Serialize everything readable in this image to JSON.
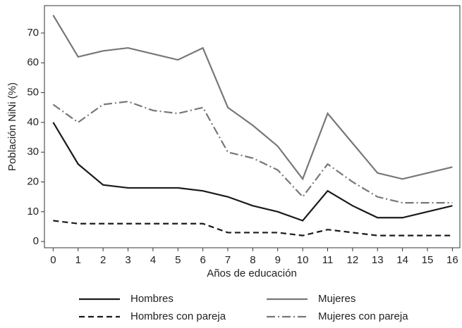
{
  "chart_data": {
    "type": "line",
    "xlabel": "Años de educación",
    "ylabel": "Población NiNi (%)",
    "x": [
      0,
      1,
      2,
      3,
      4,
      5,
      6,
      7,
      8,
      9,
      10,
      11,
      12,
      13,
      14,
      15,
      16
    ],
    "series": [
      {
        "name": "Hombres",
        "color": "#1a1a1a",
        "dash": "solid",
        "values": [
          40,
          26,
          19,
          18,
          18,
          18,
          17,
          15,
          12,
          10,
          7,
          17,
          12,
          8,
          8,
          10,
          12
        ]
      },
      {
        "name": "Mujeres",
        "color": "#777777",
        "dash": "solid",
        "values": [
          76,
          62,
          64,
          65,
          63,
          61,
          65,
          45,
          39,
          32,
          21,
          43,
          33,
          23,
          21,
          23,
          25
        ]
      },
      {
        "name": "Hombres con pareja",
        "color": "#1a1a1a",
        "dash": "dash",
        "values": [
          7,
          6,
          6,
          6,
          6,
          6,
          6,
          3,
          3,
          3,
          2,
          4,
          3,
          2,
          2,
          2,
          2
        ]
      },
      {
        "name": "Mujeres con pareja",
        "color": "#777777",
        "dash": "dashdot",
        "values": [
          46,
          40,
          46,
          47,
          44,
          43,
          45,
          30,
          28,
          24,
          15,
          26,
          20,
          15,
          13,
          13,
          13
        ]
      }
    ],
    "xlim": [
      -0.35,
      16.3
    ],
    "xticks": [
      0,
      1,
      2,
      3,
      4,
      5,
      6,
      7,
      8,
      9,
      10,
      11,
      12,
      13,
      14,
      15,
      16
    ],
    "ylim": [
      -2.1,
      79.2
    ],
    "yticks": [
      0,
      10,
      20,
      30,
      40,
      50,
      60,
      70
    ],
    "grid": false,
    "legend": "bottom"
  }
}
